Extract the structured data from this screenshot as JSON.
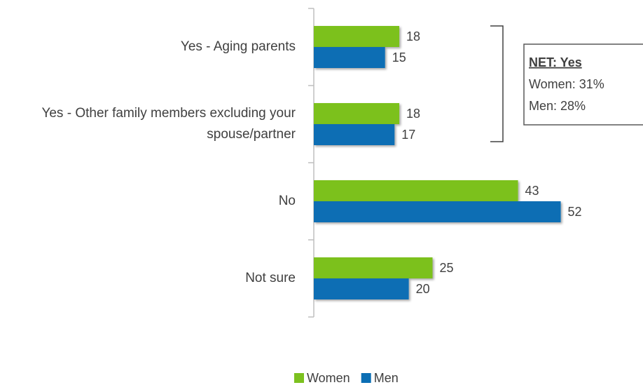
{
  "chart_data": {
    "type": "bar",
    "orientation": "horizontal",
    "categories": [
      "Yes - Aging parents",
      "Yes - Other family members excluding your spouse/partner",
      "No",
      "Not sure"
    ],
    "series": [
      {
        "name": "Women",
        "color": "#7cc11f",
        "values": [
          18,
          18,
          43,
          25
        ]
      },
      {
        "name": "Men",
        "color": "#0b6eb4",
        "values": [
          15,
          17,
          52,
          20
        ]
      }
    ],
    "annotation": {
      "title": "NET: Yes",
      "lines": [
        "Women: 31%",
        "Men: 28%"
      ]
    },
    "legend": "bottom"
  }
}
